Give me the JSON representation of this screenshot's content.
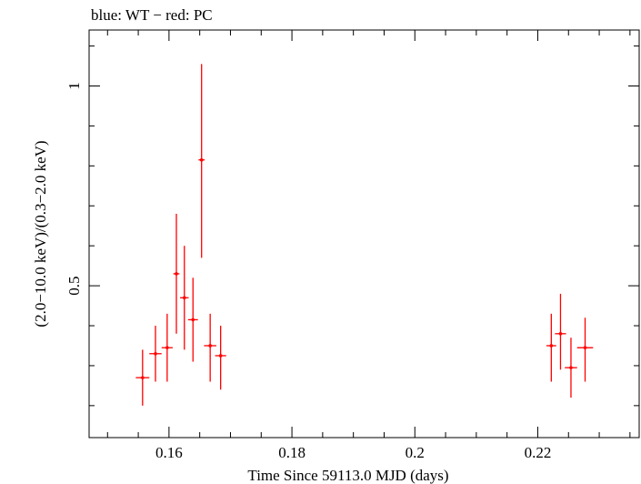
{
  "chart_data": {
    "type": "scatter",
    "title": "blue: WT − red: PC",
    "xlabel": "Time Since 59113.0 MJD (days)",
    "ylabel": "(2.0−10.0 keV)/(0.3−2.0 keV)",
    "xlim": [
      0.147,
      0.2365
    ],
    "ylim": [
      0.12,
      1.14
    ],
    "x_ticks": [
      {
        "value": 0.16,
        "label": "0.16"
      },
      {
        "value": 0.18,
        "label": "0.18"
      },
      {
        "value": 0.2,
        "label": "0.2"
      },
      {
        "value": 0.22,
        "label": "0.22"
      }
    ],
    "y_ticks": [
      {
        "value": 0.5,
        "label": "0.5"
      },
      {
        "value": 1.0,
        "label": "1"
      }
    ],
    "series": [
      {
        "name": "PC",
        "color": "#ff0000",
        "points": [
          {
            "x": 0.1557,
            "y": 0.27,
            "xerr": 0.0011,
            "ylo": 0.2,
            "yhi": 0.34
          },
          {
            "x": 0.1578,
            "y": 0.33,
            "xerr": 0.001,
            "ylo": 0.26,
            "yhi": 0.4
          },
          {
            "x": 0.1597,
            "y": 0.345,
            "xerr": 0.0009,
            "ylo": 0.26,
            "yhi": 0.43
          },
          {
            "x": 0.1612,
            "y": 0.53,
            "xerr": 0.0005,
            "ylo": 0.38,
            "yhi": 0.68
          },
          {
            "x": 0.1625,
            "y": 0.47,
            "xerr": 0.0007,
            "ylo": 0.34,
            "yhi": 0.6
          },
          {
            "x": 0.1639,
            "y": 0.415,
            "xerr": 0.0008,
            "ylo": 0.31,
            "yhi": 0.52
          },
          {
            "x": 0.1653,
            "y": 0.815,
            "xerr": 0.0005,
            "ylo": 0.57,
            "yhi": 1.055
          },
          {
            "x": 0.1667,
            "y": 0.35,
            "xerr": 0.001,
            "ylo": 0.26,
            "yhi": 0.43
          },
          {
            "x": 0.1684,
            "y": 0.325,
            "xerr": 0.0009,
            "ylo": 0.24,
            "yhi": 0.4
          },
          {
            "x": 0.2222,
            "y": 0.35,
            "xerr": 0.0008,
            "ylo": 0.26,
            "yhi": 0.43
          },
          {
            "x": 0.2237,
            "y": 0.38,
            "xerr": 0.0009,
            "ylo": 0.29,
            "yhi": 0.48
          },
          {
            "x": 0.2254,
            "y": 0.295,
            "xerr": 0.001,
            "ylo": 0.22,
            "yhi": 0.37
          },
          {
            "x": 0.2277,
            "y": 0.345,
            "xerr": 0.0013,
            "ylo": 0.26,
            "yhi": 0.42
          }
        ]
      }
    ]
  }
}
